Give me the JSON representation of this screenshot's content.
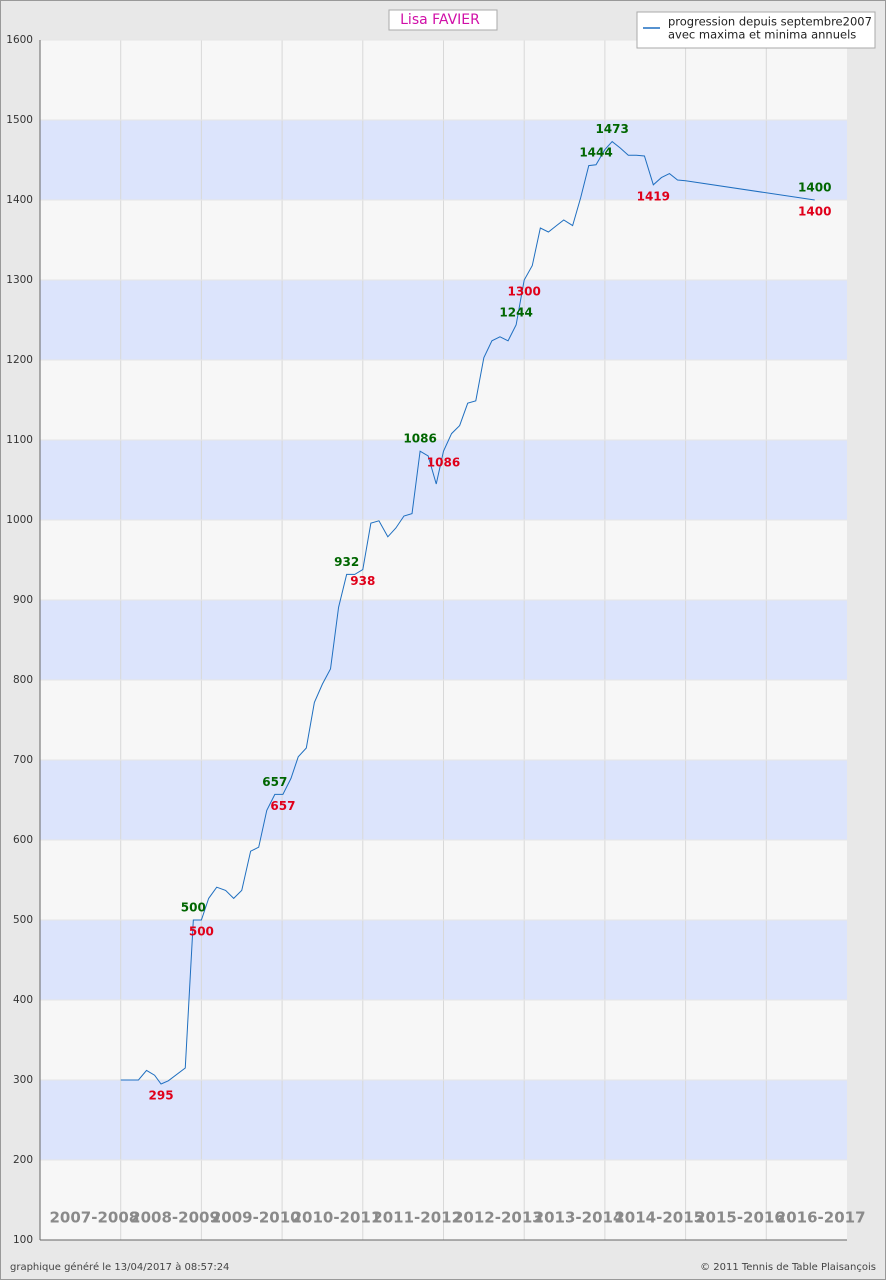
{
  "chart_data": {
    "type": "line",
    "title": "Lisa FAVIER",
    "categories": [
      "2007-2008",
      "2008-2009",
      "2009-2010",
      "2010-2011",
      "2011-2012",
      "2012-2013",
      "2013-2014",
      "2014-2015",
      "2015-2016",
      "2016-2017"
    ],
    "xlim": [
      0,
      10
    ],
    "ylim": [
      100,
      1600
    ],
    "yticks": [
      100,
      200,
      300,
      400,
      500,
      600,
      700,
      800,
      900,
      1000,
      1100,
      1200,
      1300,
      1400,
      1500,
      1600
    ],
    "band_colors": [
      "#f7f7f7",
      "#dce4fc"
    ],
    "series": [
      {
        "name": "progression depuis septembre2007",
        "color": "#1f6fc0",
        "x": [
          1.0,
          1.22,
          1.32,
          1.42,
          1.5,
          1.59,
          1.8,
          1.9,
          2.0,
          2.09,
          2.19,
          2.3,
          2.4,
          2.5,
          2.61,
          2.71,
          2.81,
          2.91,
          3.01,
          3.11,
          3.2,
          3.3,
          3.4,
          3.5,
          3.6,
          3.7,
          3.8,
          3.9,
          4.0,
          4.1,
          4.2,
          4.31,
          4.41,
          4.51,
          4.61,
          4.71,
          4.81,
          4.91,
          5.0,
          5.1,
          5.2,
          5.3,
          5.4,
          5.5,
          5.6,
          5.7,
          5.8,
          5.9,
          6.0,
          6.1,
          6.2,
          6.3,
          6.4,
          6.49,
          6.6,
          6.7,
          6.8,
          6.89,
          7.0,
          7.09,
          7.19,
          7.29,
          7.39,
          7.49,
          7.6,
          7.7,
          7.8,
          7.9,
          8.0,
          9.6
        ],
        "values": [
          300,
          300,
          312,
          306,
          295,
          299,
          315,
          500,
          500,
          527,
          541,
          537,
          527,
          537,
          586,
          591,
          637,
          657,
          657,
          677,
          704,
          715,
          772,
          795,
          814,
          891,
          932,
          932,
          938,
          996,
          999,
          979,
          990,
          1005,
          1008,
          1086,
          1080,
          1045,
          1086,
          1108,
          1118,
          1146,
          1149,
          1203,
          1224,
          1229,
          1224,
          1244,
          1300,
          1318,
          1365,
          1360,
          1368,
          1375,
          1368,
          1403,
          1443,
          1444,
          1463,
          1473,
          1465,
          1456,
          1456,
          1455,
          1419,
          1428,
          1433,
          1425,
          1424,
          1400
        ]
      }
    ],
    "legend_note": "avec maxima et minima annuels",
    "annual_max": {
      "color": "#006600",
      "x": [
        1.9,
        2.91,
        3.8,
        4.71,
        5.9,
        6.89,
        7.09,
        9.6
      ],
      "values": [
        500,
        657,
        932,
        1086,
        1244,
        1444,
        1473,
        1400
      ]
    },
    "annual_min": {
      "color": "#e0001a",
      "x": [
        1.5,
        2.0,
        3.01,
        4.0,
        5.0,
        6.0,
        7.6,
        9.6
      ],
      "values": [
        295,
        500,
        657,
        938,
        1086,
        1300,
        1419,
        1400
      ]
    },
    "footer_left": "graphique généré le 13/04/2017 à 08:57:24",
    "footer_right": "© 2011 Tennis de Table Plaisançois"
  }
}
